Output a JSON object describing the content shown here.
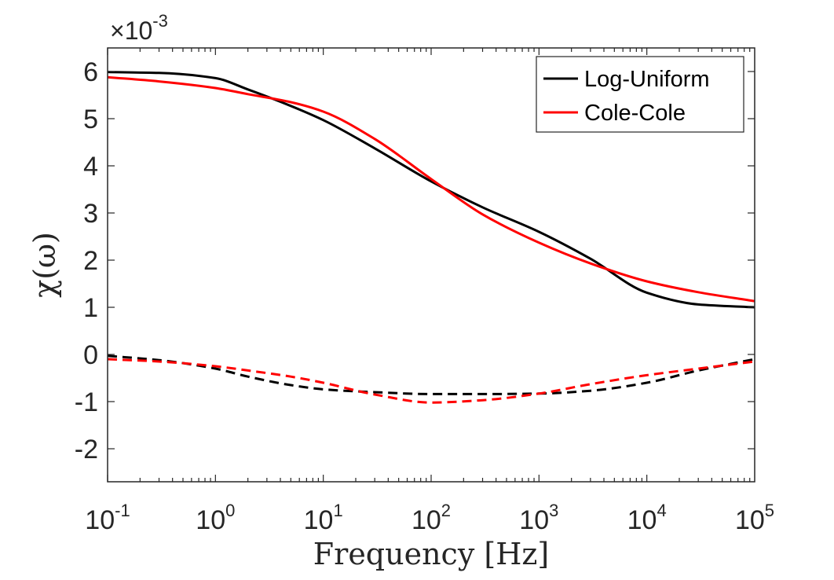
{
  "chart_data": {
    "type": "line",
    "xscale": "log",
    "xlim": [
      0.1,
      100000
    ],
    "ylim": [
      -2.7,
      6.5
    ],
    "y_multiplier_label": "×10",
    "y_multiplier_exponent": "-3",
    "xlabel": "Frequency [Hz]",
    "ylabel": "χ(ω)",
    "grid": false,
    "legend_position": "top-right",
    "x_ticks": [
      {
        "value": 0.1,
        "base": "10",
        "exp": "-1"
      },
      {
        "value": 1,
        "base": "10",
        "exp": "0"
      },
      {
        "value": 10,
        "base": "10",
        "exp": "1"
      },
      {
        "value": 100,
        "base": "10",
        "exp": "2"
      },
      {
        "value": 1000,
        "base": "10",
        "exp": "3"
      },
      {
        "value": 10000,
        "base": "10",
        "exp": "4"
      },
      {
        "value": 100000,
        "base": "10",
        "exp": "5"
      }
    ],
    "y_ticks": [
      {
        "value": 6,
        "label": "6"
      },
      {
        "value": 5,
        "label": "5"
      },
      {
        "value": 4,
        "label": "4"
      },
      {
        "value": 3,
        "label": "3"
      },
      {
        "value": 2,
        "label": "2"
      },
      {
        "value": 1,
        "label": "1"
      },
      {
        "value": 0,
        "label": "0"
      },
      {
        "value": -1,
        "label": "-1"
      },
      {
        "value": -2,
        "label": "-2"
      }
    ],
    "x": [
      0.1,
      0.3,
      1,
      2,
      5,
      10,
      30,
      100,
      300,
      1000,
      3000,
      10000,
      30000,
      100000
    ],
    "series": [
      {
        "name": "Log-Uniform",
        "color": "#000000",
        "dash": "solid",
        "legend": true,
        "values": [
          5.99,
          5.97,
          5.86,
          5.62,
          5.27,
          4.97,
          4.37,
          3.67,
          3.12,
          2.6,
          2.03,
          1.31,
          1.06,
          1.0
        ]
      },
      {
        "name": "Cole-Cole",
        "color": "#ff0000",
        "dash": "solid",
        "legend": true,
        "values": [
          5.88,
          5.79,
          5.65,
          5.52,
          5.35,
          5.15,
          4.57,
          3.72,
          2.97,
          2.37,
          1.93,
          1.55,
          1.32,
          1.13
        ]
      },
      {
        "name": "",
        "color": "#000000",
        "dash": "dashed",
        "legend": false,
        "values": [
          -0.03,
          -0.12,
          -0.3,
          -0.47,
          -0.65,
          -0.74,
          -0.8,
          -0.84,
          -0.84,
          -0.83,
          -0.77,
          -0.6,
          -0.34,
          -0.1
        ]
      },
      {
        "name": "",
        "color": "#ff0000",
        "dash": "dashed",
        "legend": false,
        "values": [
          -0.1,
          -0.15,
          -0.25,
          -0.34,
          -0.47,
          -0.6,
          -0.85,
          -1.02,
          -0.97,
          -0.83,
          -0.63,
          -0.44,
          -0.3,
          -0.15
        ]
      }
    ]
  }
}
